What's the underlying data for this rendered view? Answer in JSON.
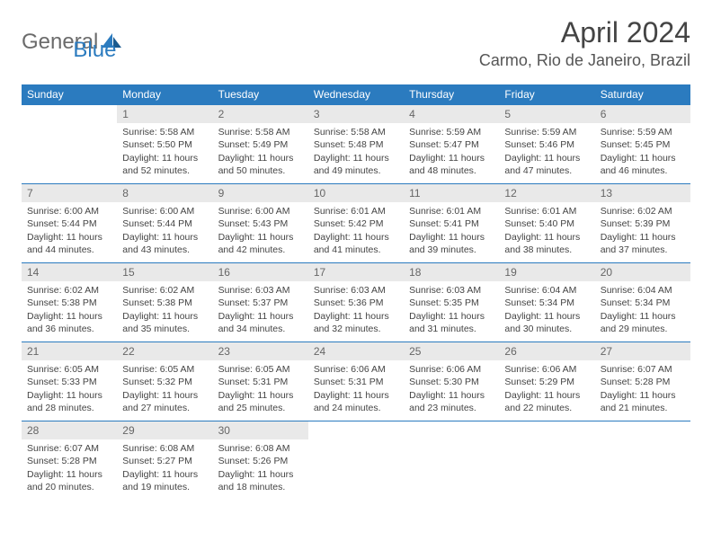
{
  "brand": {
    "part1": "General",
    "part2": "Blue"
  },
  "title": "April 2024",
  "location": "Carmo, Rio de Janeiro, Brazil",
  "colors": {
    "header_bg": "#2b7bbf",
    "daynum_bg": "#e9e9e9",
    "text": "#444",
    "border": "#2b7bbf"
  },
  "weekdays": [
    "Sunday",
    "Monday",
    "Tuesday",
    "Wednesday",
    "Thursday",
    "Friday",
    "Saturday"
  ],
  "weeks": [
    [
      null,
      {
        "n": "1",
        "sr": "Sunrise: 5:58 AM",
        "ss": "Sunset: 5:50 PM",
        "d1": "Daylight: 11 hours",
        "d2": "and 52 minutes."
      },
      {
        "n": "2",
        "sr": "Sunrise: 5:58 AM",
        "ss": "Sunset: 5:49 PM",
        "d1": "Daylight: 11 hours",
        "d2": "and 50 minutes."
      },
      {
        "n": "3",
        "sr": "Sunrise: 5:58 AM",
        "ss": "Sunset: 5:48 PM",
        "d1": "Daylight: 11 hours",
        "d2": "and 49 minutes."
      },
      {
        "n": "4",
        "sr": "Sunrise: 5:59 AM",
        "ss": "Sunset: 5:47 PM",
        "d1": "Daylight: 11 hours",
        "d2": "and 48 minutes."
      },
      {
        "n": "5",
        "sr": "Sunrise: 5:59 AM",
        "ss": "Sunset: 5:46 PM",
        "d1": "Daylight: 11 hours",
        "d2": "and 47 minutes."
      },
      {
        "n": "6",
        "sr": "Sunrise: 5:59 AM",
        "ss": "Sunset: 5:45 PM",
        "d1": "Daylight: 11 hours",
        "d2": "and 46 minutes."
      }
    ],
    [
      {
        "n": "7",
        "sr": "Sunrise: 6:00 AM",
        "ss": "Sunset: 5:44 PM",
        "d1": "Daylight: 11 hours",
        "d2": "and 44 minutes."
      },
      {
        "n": "8",
        "sr": "Sunrise: 6:00 AM",
        "ss": "Sunset: 5:44 PM",
        "d1": "Daylight: 11 hours",
        "d2": "and 43 minutes."
      },
      {
        "n": "9",
        "sr": "Sunrise: 6:00 AM",
        "ss": "Sunset: 5:43 PM",
        "d1": "Daylight: 11 hours",
        "d2": "and 42 minutes."
      },
      {
        "n": "10",
        "sr": "Sunrise: 6:01 AM",
        "ss": "Sunset: 5:42 PM",
        "d1": "Daylight: 11 hours",
        "d2": "and 41 minutes."
      },
      {
        "n": "11",
        "sr": "Sunrise: 6:01 AM",
        "ss": "Sunset: 5:41 PM",
        "d1": "Daylight: 11 hours",
        "d2": "and 39 minutes."
      },
      {
        "n": "12",
        "sr": "Sunrise: 6:01 AM",
        "ss": "Sunset: 5:40 PM",
        "d1": "Daylight: 11 hours",
        "d2": "and 38 minutes."
      },
      {
        "n": "13",
        "sr": "Sunrise: 6:02 AM",
        "ss": "Sunset: 5:39 PM",
        "d1": "Daylight: 11 hours",
        "d2": "and 37 minutes."
      }
    ],
    [
      {
        "n": "14",
        "sr": "Sunrise: 6:02 AM",
        "ss": "Sunset: 5:38 PM",
        "d1": "Daylight: 11 hours",
        "d2": "and 36 minutes."
      },
      {
        "n": "15",
        "sr": "Sunrise: 6:02 AM",
        "ss": "Sunset: 5:38 PM",
        "d1": "Daylight: 11 hours",
        "d2": "and 35 minutes."
      },
      {
        "n": "16",
        "sr": "Sunrise: 6:03 AM",
        "ss": "Sunset: 5:37 PM",
        "d1": "Daylight: 11 hours",
        "d2": "and 34 minutes."
      },
      {
        "n": "17",
        "sr": "Sunrise: 6:03 AM",
        "ss": "Sunset: 5:36 PM",
        "d1": "Daylight: 11 hours",
        "d2": "and 32 minutes."
      },
      {
        "n": "18",
        "sr": "Sunrise: 6:03 AM",
        "ss": "Sunset: 5:35 PM",
        "d1": "Daylight: 11 hours",
        "d2": "and 31 minutes."
      },
      {
        "n": "19",
        "sr": "Sunrise: 6:04 AM",
        "ss": "Sunset: 5:34 PM",
        "d1": "Daylight: 11 hours",
        "d2": "and 30 minutes."
      },
      {
        "n": "20",
        "sr": "Sunrise: 6:04 AM",
        "ss": "Sunset: 5:34 PM",
        "d1": "Daylight: 11 hours",
        "d2": "and 29 minutes."
      }
    ],
    [
      {
        "n": "21",
        "sr": "Sunrise: 6:05 AM",
        "ss": "Sunset: 5:33 PM",
        "d1": "Daylight: 11 hours",
        "d2": "and 28 minutes."
      },
      {
        "n": "22",
        "sr": "Sunrise: 6:05 AM",
        "ss": "Sunset: 5:32 PM",
        "d1": "Daylight: 11 hours",
        "d2": "and 27 minutes."
      },
      {
        "n": "23",
        "sr": "Sunrise: 6:05 AM",
        "ss": "Sunset: 5:31 PM",
        "d1": "Daylight: 11 hours",
        "d2": "and 25 minutes."
      },
      {
        "n": "24",
        "sr": "Sunrise: 6:06 AM",
        "ss": "Sunset: 5:31 PM",
        "d1": "Daylight: 11 hours",
        "d2": "and 24 minutes."
      },
      {
        "n": "25",
        "sr": "Sunrise: 6:06 AM",
        "ss": "Sunset: 5:30 PM",
        "d1": "Daylight: 11 hours",
        "d2": "and 23 minutes."
      },
      {
        "n": "26",
        "sr": "Sunrise: 6:06 AM",
        "ss": "Sunset: 5:29 PM",
        "d1": "Daylight: 11 hours",
        "d2": "and 22 minutes."
      },
      {
        "n": "27",
        "sr": "Sunrise: 6:07 AM",
        "ss": "Sunset: 5:28 PM",
        "d1": "Daylight: 11 hours",
        "d2": "and 21 minutes."
      }
    ],
    [
      {
        "n": "28",
        "sr": "Sunrise: 6:07 AM",
        "ss": "Sunset: 5:28 PM",
        "d1": "Daylight: 11 hours",
        "d2": "and 20 minutes."
      },
      {
        "n": "29",
        "sr": "Sunrise: 6:08 AM",
        "ss": "Sunset: 5:27 PM",
        "d1": "Daylight: 11 hours",
        "d2": "and 19 minutes."
      },
      {
        "n": "30",
        "sr": "Sunrise: 6:08 AM",
        "ss": "Sunset: 5:26 PM",
        "d1": "Daylight: 11 hours",
        "d2": "and 18 minutes."
      },
      null,
      null,
      null,
      null
    ]
  ]
}
